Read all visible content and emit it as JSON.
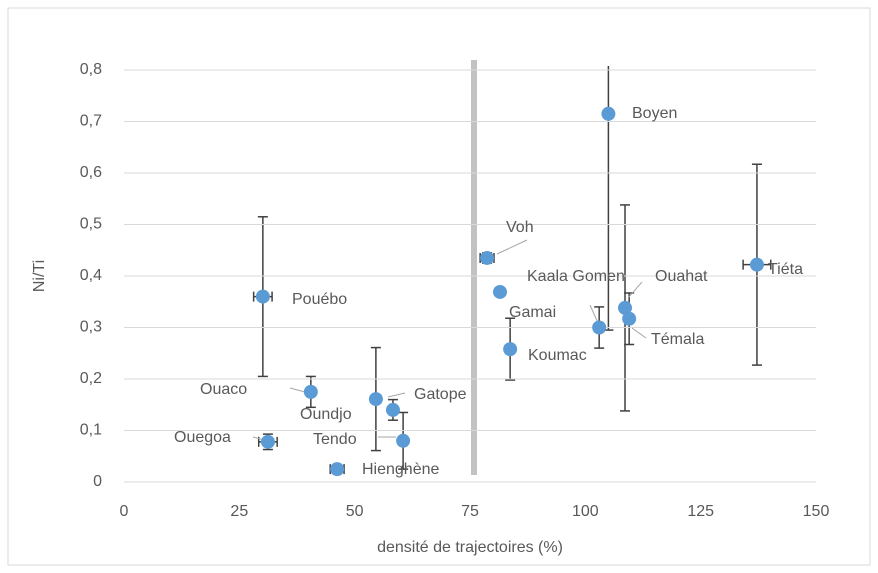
{
  "chart_data": {
    "type": "scatter",
    "x_label": "densité de trajectoires (%)",
    "y_label": "Ni/Ti",
    "labels": [
      "Pouébo",
      "Ouaco",
      "Ouegoa",
      "Hienghène",
      "Gatope",
      "Oundjo",
      "Tendo",
      "Voh",
      "Gamai",
      "Koumac",
      "Kaala Gomen",
      "Boyen",
      "Ouahat",
      "Témala",
      "Tiéta"
    ],
    "x": [
      30.1,
      40.5,
      31.2,
      46.2,
      54.6,
      58.3,
      60.5,
      78.7,
      81.5,
      83.7,
      103,
      105,
      108.6,
      109.5,
      137.2
    ],
    "values": [
      0.36,
      0.175,
      0.078,
      0.025,
      0.161,
      0.14,
      0.08,
      0.435,
      0.369,
      0.258,
      0.3,
      0.715,
      0.338,
      0.317,
      0.422
    ],
    "errors": [
      0.155,
      0.03,
      0.015,
      0.005,
      0.1,
      0.02,
      0.055,
      0.01,
      0.005,
      0.06,
      0.04,
      0.42,
      0.2,
      0.05,
      0.195
    ],
    "x_errors": [
      2,
      null,
      2,
      1.5,
      null,
      null,
      null,
      1.5,
      null,
      null,
      null,
      null,
      null,
      null,
      3
    ],
    "color": "#5b9bd5",
    "xlim": [
      0,
      150
    ],
    "xticks": [
      0,
      25,
      50,
      75,
      100,
      125,
      150
    ],
    "ylim": [
      0,
      0.8
    ],
    "yticks": [
      0,
      {
        "value": 0.1,
        "label": "0,1"
      },
      {
        "value": 0.2,
        "label": "0,2"
      },
      {
        "value": 0.3,
        "label": "0,3"
      },
      {
        "value": 0.4,
        "label": "0,4"
      },
      {
        "value": 0.5,
        "label": "0,5"
      },
      {
        "value": 0.6,
        "label": "0,6"
      },
      {
        "value": 0.7,
        "label": "0,7"
      },
      {
        "value": 0.8,
        "label": "0,8"
      }
    ],
    "grid": true
  }
}
